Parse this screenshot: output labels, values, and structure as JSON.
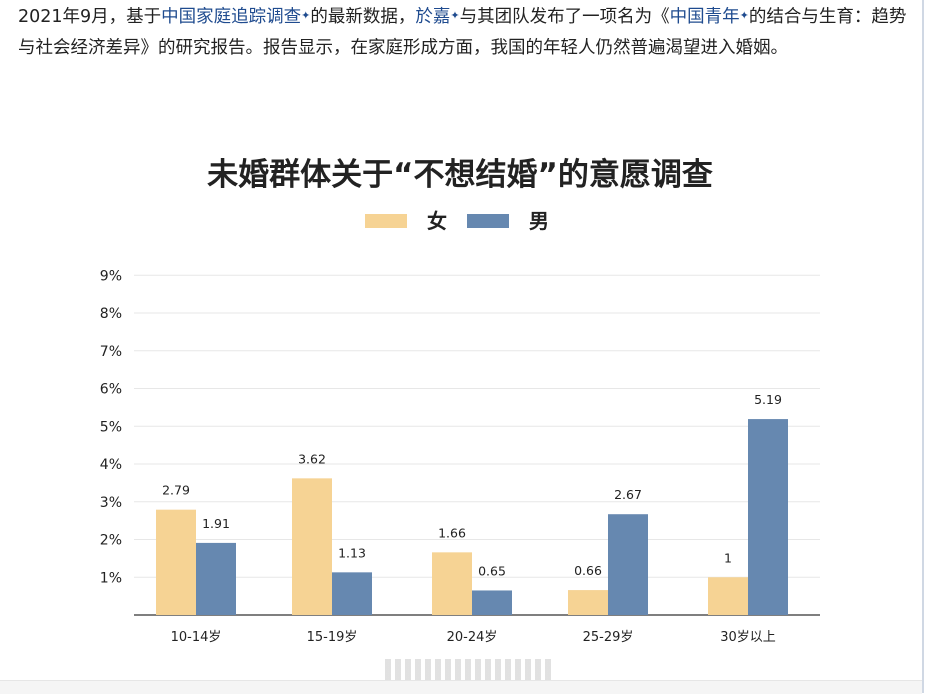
{
  "article": {
    "p1": "2021年9月，基于",
    "link1": "中国家庭追踪调查",
    "p2": "的最新数据，",
    "link2": "於嘉",
    "p3": "与其团队发布了一项名为《",
    "link3": "中国青年",
    "p4": "的结合与生育：趋势与社会经济差异》的研究报告。报告显示，在家庭形成方面，我国的年轻人仍然普遍渴望进入婚姻。",
    "link_marker": "✦"
  },
  "colors": {
    "female": "#f6d394",
    "male": "#6688b0",
    "grid": "#e7e7e7",
    "axis": "#555555",
    "text": "#222222"
  },
  "chart_data": {
    "type": "bar",
    "title": "未婚群体关于“不想结婚”的意愿调查",
    "categories": [
      "10-14岁",
      "15-19岁",
      "20-24岁",
      "25-29岁",
      "30岁以上"
    ],
    "series": [
      {
        "name": "女",
        "values": [
          2.79,
          3.62,
          1.66,
          0.66,
          1
        ]
      },
      {
        "name": "男",
        "values": [
          1.91,
          1.13,
          0.65,
          2.67,
          5.19
        ]
      }
    ],
    "yticks": [
      "1%",
      "2%",
      "3%",
      "4%",
      "5%",
      "6%",
      "7%",
      "8%",
      "9%"
    ],
    "ylim": [
      0,
      9
    ],
    "data_labels": [
      [
        "2.79",
        "3.62",
        "1.66",
        "0.66",
        "1"
      ],
      [
        "1.91",
        "1.13",
        "0.65",
        "2.67",
        "5.19"
      ]
    ],
    "legend_position": "top-center",
    "grid": true
  }
}
